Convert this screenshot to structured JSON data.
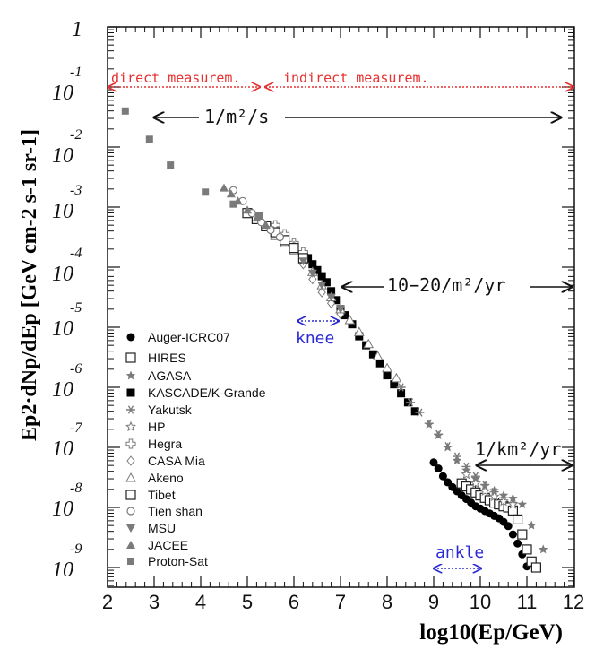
{
  "chart_data": {
    "type": "scatter",
    "title": "",
    "xlabel": "log10(Ep/GeV)",
    "ylabel": "Ep2·dNp/dEp [GeV cm-2 s-1 sr-1]",
    "xlim": [
      2,
      12
    ],
    "ylim_log10": [
      -9.3,
      1
    ],
    "x_ticks": [
      "2",
      "3",
      "4",
      "5",
      "6",
      "7",
      "8",
      "9",
      "10",
      "11",
      "12"
    ],
    "y_ticks": [
      {
        "value": 0,
        "base": "1",
        "exp": ""
      },
      {
        "value": -1,
        "base": "10",
        "exp": "-1"
      },
      {
        "value": -2,
        "base": "10",
        "exp": "-2"
      },
      {
        "value": -3,
        "base": "10",
        "exp": "-3"
      },
      {
        "value": -4,
        "base": "10",
        "exp": "-4"
      },
      {
        "value": -5,
        "base": "10",
        "exp": "-5"
      },
      {
        "value": -6,
        "base": "10",
        "exp": "-6"
      },
      {
        "value": -7,
        "base": "10",
        "exp": "-7"
      },
      {
        "value": -8,
        "base": "10",
        "exp": "-8"
      },
      {
        "value": -9,
        "base": "10",
        "exp": "-9"
      }
    ],
    "annotations": {
      "direct": "direct measurem.",
      "indirect": "indirect measurem.",
      "rate1": "1/m²/s",
      "rate2": "10−20/m²/yr",
      "rate3": "1/km²/yr",
      "knee": "knee",
      "ankle": "ankle"
    },
    "colors": {
      "red": "#e83030",
      "blue": "#2b2bd6",
      "gray": "#7a7a7a",
      "dark": "#222222",
      "black": "#000000"
    },
    "legend_position": "bottom-left",
    "series": [
      {
        "name": "Auger-ICRC07",
        "marker": "circle-filled",
        "x": [
          9.0,
          9.1,
          9.2,
          9.3,
          9.4,
          9.5,
          9.6,
          9.7,
          9.8,
          9.9,
          10.0,
          10.1,
          10.2,
          10.3,
          10.4,
          10.5,
          10.6,
          10.7,
          10.8,
          10.9,
          11.0
        ],
        "y": [
          -7.25,
          -7.35,
          -7.48,
          -7.58,
          -7.66,
          -7.73,
          -7.8,
          -7.86,
          -7.92,
          -7.98,
          -8.02,
          -8.06,
          -8.1,
          -8.14,
          -8.18,
          -8.24,
          -8.31,
          -8.45,
          -8.6,
          -8.78,
          -8.98
        ]
      },
      {
        "name": "HIRES",
        "marker": "square-open",
        "x": [
          9.6,
          9.7,
          9.8,
          9.9,
          10.0,
          10.1,
          10.2,
          10.3,
          10.4,
          10.5,
          10.6,
          10.7,
          10.8,
          10.9,
          11.0,
          11.1,
          11.2
        ],
        "y": [
          -7.6,
          -7.65,
          -7.7,
          -7.75,
          -7.8,
          -7.84,
          -7.88,
          -7.92,
          -7.95,
          -7.98,
          -8.0,
          -8.05,
          -8.2,
          -8.45,
          -8.7,
          -8.9,
          -9.0
        ]
      },
      {
        "name": "AGASA",
        "marker": "star-filled",
        "x": [
          8.9,
          9.1,
          9.3,
          9.5,
          9.7,
          9.9,
          10.1,
          10.3,
          10.5,
          10.7,
          10.9,
          11.1,
          11.35
        ],
        "y": [
          -6.62,
          -6.8,
          -7.0,
          -7.22,
          -7.38,
          -7.52,
          -7.64,
          -7.72,
          -7.8,
          -7.85,
          -7.95,
          -8.3,
          -8.7
        ]
      },
      {
        "name": "KASCADE/K-Grande",
        "marker": "square-filled",
        "x": [
          6.2,
          6.3,
          6.4,
          6.5,
          6.6,
          6.7,
          6.8,
          6.9,
          7.0,
          7.1,
          7.25,
          7.4,
          7.55,
          7.7,
          7.85,
          8.0,
          8.15,
          8.3,
          8.45,
          8.6
        ],
        "y": [
          -3.8,
          -3.85,
          -3.95,
          -4.05,
          -4.15,
          -4.25,
          -4.4,
          -4.55,
          -4.7,
          -4.8,
          -4.95,
          -5.15,
          -5.3,
          -5.45,
          -5.6,
          -5.8,
          -5.95,
          -6.1,
          -6.25,
          -6.4
        ]
      },
      {
        "name": "Yakutsk",
        "marker": "asterisk",
        "x": [
          8.3,
          8.5,
          8.7,
          8.9,
          9.1,
          9.3,
          9.5,
          9.7,
          9.9,
          10.1,
          10.3,
          10.5,
          10.7
        ],
        "y": [
          -6.0,
          -6.25,
          -6.42,
          -6.6,
          -6.78,
          -6.98,
          -7.15,
          -7.32,
          -7.48,
          -7.62,
          -7.74,
          -7.84,
          -7.92
        ]
      },
      {
        "name": "HP",
        "marker": "star-open",
        "x": [
          9.7,
          9.9,
          10.1,
          10.3,
          10.5,
          10.7
        ],
        "y": [
          -7.45,
          -7.6,
          -7.73,
          -7.82,
          -7.9,
          -7.95
        ]
      },
      {
        "name": "Hegra",
        "marker": "cross-open",
        "x": [
          5.6,
          5.8,
          6.0,
          6.2
        ],
        "y": [
          -3.3,
          -3.45,
          -3.6,
          -3.75
        ]
      },
      {
        "name": "CASA Mia",
        "marker": "diamond-open",
        "x": [
          6.0,
          6.2,
          6.4,
          6.6,
          6.8,
          7.0
        ],
        "y": [
          -3.65,
          -3.95,
          -4.2,
          -4.42,
          -4.6,
          -4.78
        ]
      },
      {
        "name": "Akeno",
        "marker": "triangle-open",
        "x": [
          5.2,
          5.4,
          5.6,
          5.8,
          6.0,
          6.2,
          6.4,
          6.6,
          6.8,
          7.0,
          7.2,
          7.4,
          7.6,
          7.8,
          8.0,
          8.2
        ],
        "y": [
          -3.2,
          -3.32,
          -3.48,
          -3.6,
          -3.72,
          -3.88,
          -4.08,
          -4.3,
          -4.5,
          -4.7,
          -4.88,
          -5.08,
          -5.28,
          -5.48,
          -5.68,
          -5.85
        ]
      },
      {
        "name": "Tibet",
        "marker": "square-open",
        "x": [
          5.0,
          5.2,
          5.4,
          5.6,
          5.8,
          6.0,
          6.2
        ],
        "y": [
          -3.1,
          -3.2,
          -3.32,
          -3.42,
          -3.55,
          -3.68,
          -3.85
        ]
      },
      {
        "name": "Tien shan",
        "marker": "circle-open",
        "x": [
          4.7,
          4.9,
          5.1,
          5.3,
          5.5,
          5.7
        ],
        "y": [
          -2.72,
          -2.9,
          -3.1,
          -3.25,
          -3.38,
          -3.5
        ]
      },
      {
        "name": "MSU",
        "marker": "triangle-down-filled",
        "x": [
          6.2,
          6.4,
          6.6,
          6.8,
          7.0
        ],
        "y": [
          -3.9,
          -4.1,
          -4.3,
          -4.5,
          -4.7
        ]
      },
      {
        "name": "JACEE",
        "marker": "triangle-filled",
        "x": [
          4.5,
          4.65,
          4.8,
          5.0,
          5.2,
          5.4
        ],
        "y": [
          -2.68,
          -2.78,
          -2.9,
          -3.05,
          -3.18,
          -3.3
        ]
      },
      {
        "name": "Proton-Sat",
        "marker": "square-filled-gray",
        "x": [
          2.38,
          2.9,
          3.35,
          4.1,
          4.7,
          5.25
        ],
        "y": [
          -1.4,
          -1.87,
          -2.3,
          -2.75,
          -2.95,
          -3.15
        ]
      }
    ]
  }
}
